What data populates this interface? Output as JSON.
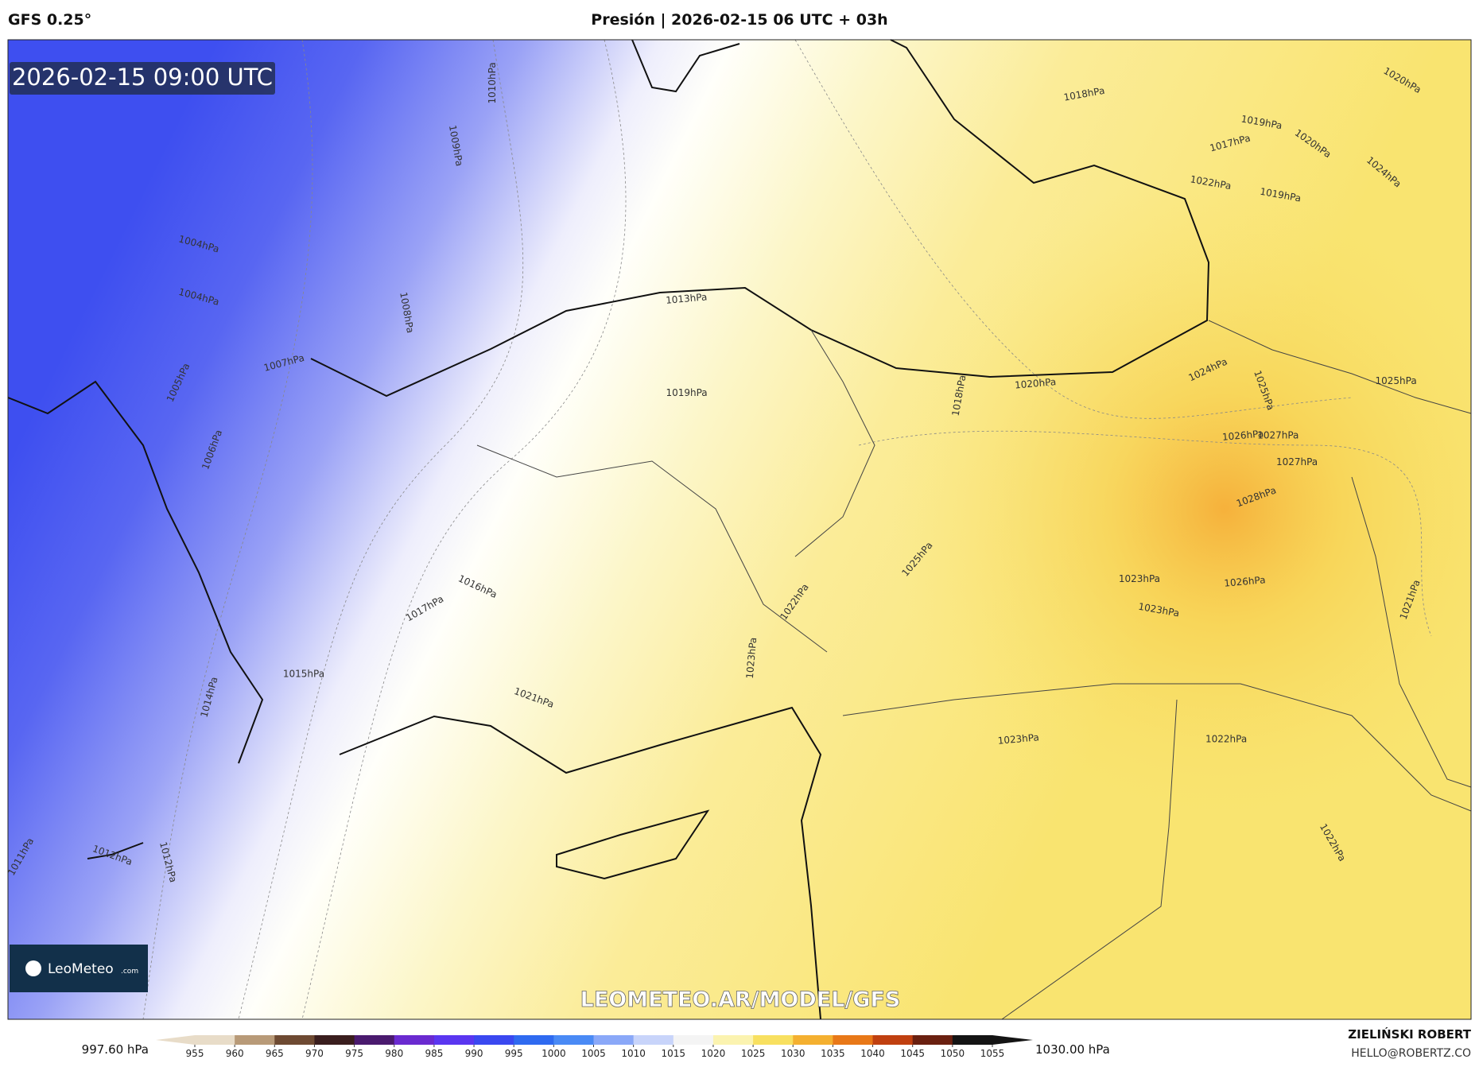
{
  "header": {
    "model": "GFS 0.25°",
    "title": "Presión | 2026-02-15 06 UTC + 03h"
  },
  "map": {
    "timestamp": "2026-02-15 09:00 UTC",
    "watermark": "LEOMETEO.AR/MODEL/GFS",
    "logo": {
      "name": "LeoMeteo",
      "suffix": ".com"
    },
    "isobar_labels": [
      "1018hPa",
      "1020hPa",
      "1019hPa",
      "1017hPa",
      "1020hPa",
      "1022hPa",
      "1019hPa",
      "1024hPa",
      "1010hPa",
      "1009hPa",
      "1004hPa",
      "1004hPa",
      "1008hPa",
      "1007hPa",
      "1005hPa",
      "1006hPa",
      "1013hPa",
      "1019hPa",
      "1020hPa",
      "1018hPa",
      "1024hPa",
      "1025hPa",
      "1025hPa",
      "1026hPa",
      "1027hPa",
      "1027hPa",
      "1028hPa",
      "1025hPa",
      "1016hPa",
      "1017hPa",
      "1022hPa",
      "1023hPa",
      "1026hPa",
      "1023hPa",
      "1021hPa",
      "1023hPa",
      "1015hPa",
      "1021hPa",
      "1014hPa",
      "1023hPa",
      "1022hPa",
      "1022hPa",
      "1012hPa",
      "1012hPa",
      "1011hPa"
    ]
  },
  "colorbar": {
    "min_label": "997.60 hPa",
    "max_label": "1030.00 hPa",
    "ticks": [
      955,
      960,
      965,
      970,
      975,
      980,
      985,
      990,
      995,
      1000,
      1005,
      1010,
      1015,
      1020,
      1025,
      1030,
      1035,
      1040,
      1045,
      1050,
      1055
    ],
    "colors": [
      "#e8dcc8",
      "#b89a78",
      "#6e4a32",
      "#3a1e1e",
      "#4a1a6e",
      "#6a2ad0",
      "#5a36f0",
      "#3a48f0",
      "#2f6af0",
      "#4a8af5",
      "#8aa8f8",
      "#c8d4fa",
      "#f4f4f4",
      "#fbf3b0",
      "#f8e060",
      "#f4b030",
      "#e87818",
      "#c04010",
      "#6a2010",
      "#141414"
    ]
  },
  "footer": {
    "author": "ZIELIŃSKI ROBERT",
    "email": "HELLO@ROBERTZ.CO"
  }
}
